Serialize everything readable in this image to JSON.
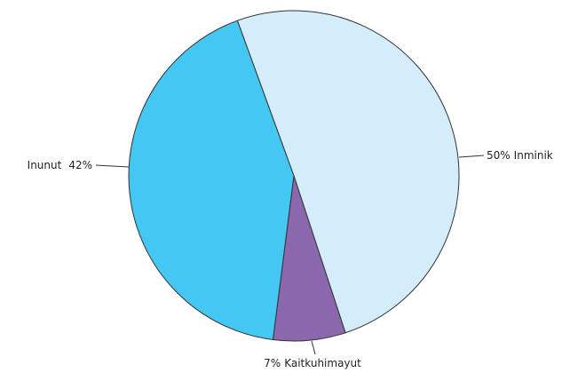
{
  "chart_data": {
    "type": "pie",
    "categories": [
      "Inminik",
      "Kaitkuhimayut",
      "Inunut"
    ],
    "values": [
      50,
      7,
      42
    ],
    "value_labels": [
      "50%",
      "7%",
      "42%"
    ],
    "colors": [
      "#d3eefa",
      "#8b68ae",
      "#45c7f4"
    ]
  }
}
